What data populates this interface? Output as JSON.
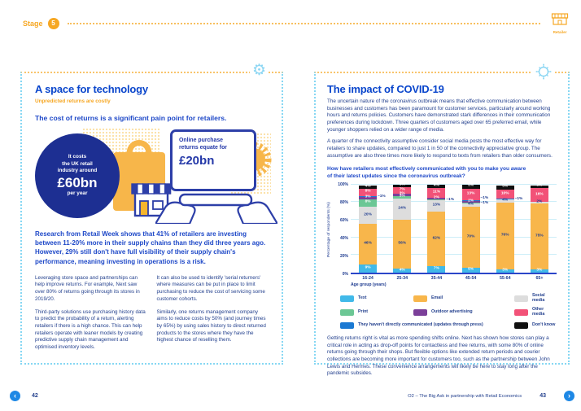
{
  "header": {
    "stage_label": "Stage",
    "stage_number": "5",
    "retailer_label": "Retailer"
  },
  "icons": {
    "gear": "⚙",
    "prev": "‹",
    "next": "›"
  },
  "left_page": {
    "title": "A space for technology",
    "subtitle": "Unpredicted returns are costly",
    "statement": "The cost of returns is a significant pain point for retailers.",
    "infographic": {
      "cost_line1": "It costs",
      "cost_line2": "the UK retail",
      "cost_line3": "industry around",
      "cost_value": "£60bn",
      "cost_suffix": "per year",
      "online_line1": "Online purchase",
      "online_line2": "returns equate for",
      "online_value": "£20bn"
    },
    "highlight": "Research from Retail Week shows that 41% of retailers are investing between 11-20% more in their supply chains than they did three years ago. However, 29% still don't have full visibility of their supply chain's performance, meaning investing in operations is a risk.",
    "col1_p1": "Leveraging store space and partnerships can help improve returns. For example, Next saw over 80% of returns going through its stores in 2019/20.",
    "col1_p2": "Third-party solutions use purchasing history data to predict the probability of a return, alerting retailers if there is a high chance. This can help retailers operate with leaner models by creating predictive supply chain management and optimised inventory levels.",
    "col2_p1": "It can also be used to identify 'serial returners' where measures can be put in place to limit purchasing to reduce the cost of servicing some customer cohorts.",
    "col2_p2": "Similarly, one returns management company aims to reduce costs by 50% (and journey times by 65%) by using sales history to direct returned products to the stores where they have the highest chance of reselling them."
  },
  "right_page": {
    "title": "The impact of COVID-19",
    "p1": "The uncertain nature of the coronavirus outbreak means that effective communication between businesses and customers has been paramount for customer services, particularly around working hours and returns policies. Customers have demonstrated stark differences in their communication preferences during lockdown. Three quarters of customers aged over 65 preferred email, while younger shoppers relied on a wider range of media.",
    "p2": "A quarter of the connectivity assumptive consider social media posts the most effective way for retailers to share updates, compared to just 1 in 50 of the connectivity appreciative group. The assumptive are also three times more likely to respond to texts from retailers than older consumers.",
    "closing": "Getting returns right is vital as more spending shifts online. Next has shown how stores can play a critical role in acting as drop-off points for contactless and free returns, with some 80% of online returns going through their shops. But flexible options like extended return periods and courier collections are becoming more important for customers too, such as the partnership between John Lewis and Hermes. These convenience arrangements will likely be here to stay long after the pandemic subsides."
  },
  "chart_data": {
    "type": "bar",
    "stacked": true,
    "title": "How have retailers most effectively communicated with you to make you aware of their latest updates since the coronavirus outbreak?",
    "categories": [
      "16-24",
      "25-34",
      "35-44",
      "45-54",
      "55-64",
      "65+"
    ],
    "series": [
      {
        "name": "Text",
        "color": "#41b9e9",
        "values": [
          9,
          4,
          7,
          5,
          3,
          3
        ]
      },
      {
        "name": "Email",
        "color": "#f8b64b",
        "values": [
          46,
          56,
          62,
          70,
          76,
          75
        ]
      },
      {
        "name": "Social media",
        "color": "#dddddd",
        "values": [
          20,
          24,
          13,
          4,
          4,
          2
        ]
      },
      {
        "name": "Print",
        "color": "#6cc795",
        "values": [
          8,
          3,
          1,
          1,
          0,
          0
        ]
      },
      {
        "name": "Outdoor advertising",
        "color": "#7b3f99",
        "values": [
          3,
          3,
          2,
          2,
          0,
          0
        ]
      },
      {
        "name": "They haven't directly communicated (updates through press)",
        "color": "#1b79d3",
        "values": [
          1,
          0,
          0,
          1,
          1,
          0
        ]
      },
      {
        "name": "Other media",
        "color": "#f25278",
        "values": [
          8,
          7,
          11,
          13,
          10,
          16
        ]
      },
      {
        "name": "Don't know",
        "color": "#101010",
        "values": [
          4,
          3,
          4,
          5,
          5,
          3
        ]
      }
    ],
    "legend_order": [
      0,
      1,
      2,
      3,
      4,
      6,
      5,
      7
    ],
    "xlabel": "Age group (years)",
    "ylabel": "Percentage of respondents (%)",
    "yticks": [
      "0%",
      "20%",
      "40%",
      "60%",
      "80%",
      "100%"
    ],
    "ylim": [
      0,
      100
    ],
    "grid": true,
    "legend_position": "bottom"
  },
  "footer": {
    "page_left": "42",
    "page_right": "43",
    "credit": "O2 – The Big Ask in partnership with Retail Economics"
  }
}
